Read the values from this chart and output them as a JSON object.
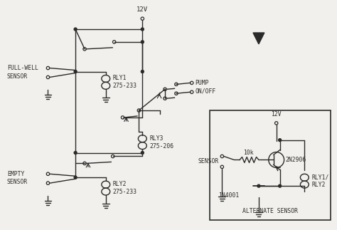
{
  "bg_color": "#f2f0ec",
  "line_color": "#2a2a2a",
  "lw": 1.3,
  "tlw": 1.0,
  "fs": 6.5,
  "sfs": 5.8,
  "labels": {
    "12V_top": "12V",
    "12V_alt": "12V",
    "full_well": "FULL-WELL\nSENSOR",
    "empty": "EMPTY\nSENSOR",
    "rly1": "RLY1\n275-233",
    "rly2": "RLY2\n275-233",
    "rly3": "RLY3\n275-206",
    "pump": "PUMP\nON/OFF",
    "sensor_alt": "SENSOR",
    "r10k": "10k",
    "transistor": "2N2906",
    "diode": "1N4001",
    "rly12": "RLY1/\nRLY2",
    "alt_label": "ALTERNATE SENSOR"
  }
}
